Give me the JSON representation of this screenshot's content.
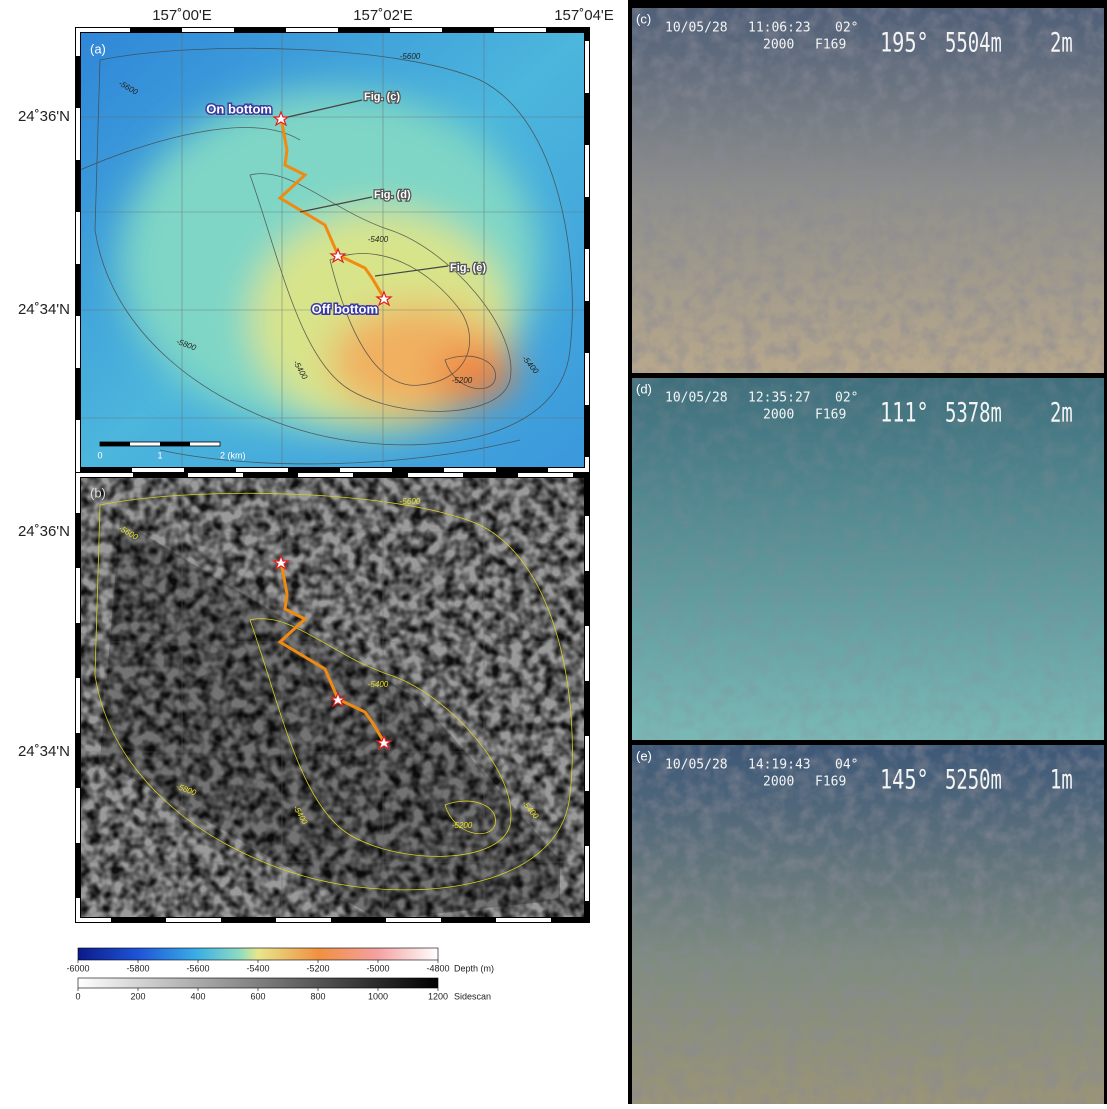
{
  "map": {
    "lon_labels": [
      "157˚00'E",
      "157˚02'E",
      "157˚04'E"
    ],
    "lat_labels": [
      "24˚36'N",
      "24˚34'N"
    ],
    "panel_a": {
      "label": "(a)",
      "annotations": {
        "on_bottom": "On bottom",
        "off_bottom": "Off bottom",
        "fig_c": "Fig. (c)",
        "fig_d": "Fig. (d)",
        "fig_e": "Fig. (e)"
      },
      "contour_labels": [
        "-5600",
        "-5600",
        "-5400",
        "-5800",
        "-5400",
        "-5200",
        "-5400"
      ],
      "scale_bar": [
        "0",
        "1",
        "2 (km)"
      ]
    },
    "panel_b": {
      "label": "(b)",
      "contour_labels": [
        "-5600",
        "-5600",
        "-5400",
        "-5800",
        "-5400",
        "-5200",
        "-5400"
      ]
    }
  },
  "colorbars": [
    {
      "label": "Depth (m)",
      "lim": [
        -6000,
        -4800
      ],
      "ticks": [
        -6000,
        -5800,
        -5600,
        -5400,
        -5200,
        -5000,
        -4800
      ]
    },
    {
      "label": "Sidescan",
      "lim": [
        0,
        1200
      ],
      "ticks": [
        0,
        200,
        400,
        600,
        800,
        1000,
        1200
      ]
    }
  ],
  "photos": [
    {
      "label": "(c)",
      "date": "10/05/28",
      "time": "11:06:23",
      "pitch": "02°",
      "code1": "2000",
      "code2": "F169",
      "heading": "195°",
      "depth": "5504m",
      "altitude": "2m"
    },
    {
      "label": "(d)",
      "date": "10/05/28",
      "time": "12:35:27",
      "pitch": "02°",
      "code1": "2000",
      "code2": "F169",
      "heading": "111°",
      "depth": "5378m",
      "altitude": "2m"
    },
    {
      "label": "(e)",
      "date": "10/05/28",
      "time": "14:19:43",
      "pitch": "04°",
      "code1": "2000",
      "code2": "F169",
      "heading": "145°",
      "depth": "5250m",
      "altitude": "1m"
    }
  ]
}
